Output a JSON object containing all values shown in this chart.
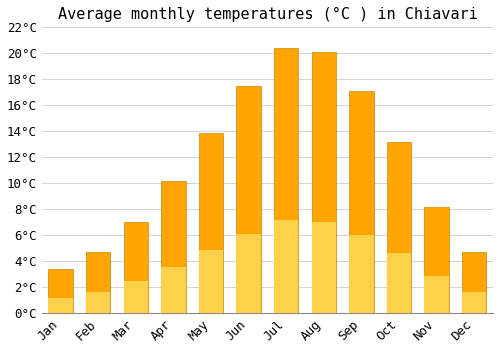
{
  "title": "Average monthly temperatures (°C ) in Chiavari",
  "months": [
    "Jan",
    "Feb",
    "Mar",
    "Apr",
    "May",
    "Jun",
    "Jul",
    "Aug",
    "Sep",
    "Oct",
    "Nov",
    "Dec"
  ],
  "temperatures": [
    3.4,
    4.7,
    7.0,
    10.2,
    13.9,
    17.5,
    20.4,
    20.1,
    17.1,
    13.2,
    8.2,
    4.7
  ],
  "bar_color": "#FFA500",
  "bar_gradient_bottom": "#FFD04A",
  "bar_edge_color": "#CC8800",
  "background_color": "#FFFFFF",
  "grid_color": "#CCCCCC",
  "ylim": [
    0,
    22
  ],
  "ytick_step": 2,
  "title_fontsize": 11,
  "tick_fontsize": 9,
  "font_family": "monospace"
}
